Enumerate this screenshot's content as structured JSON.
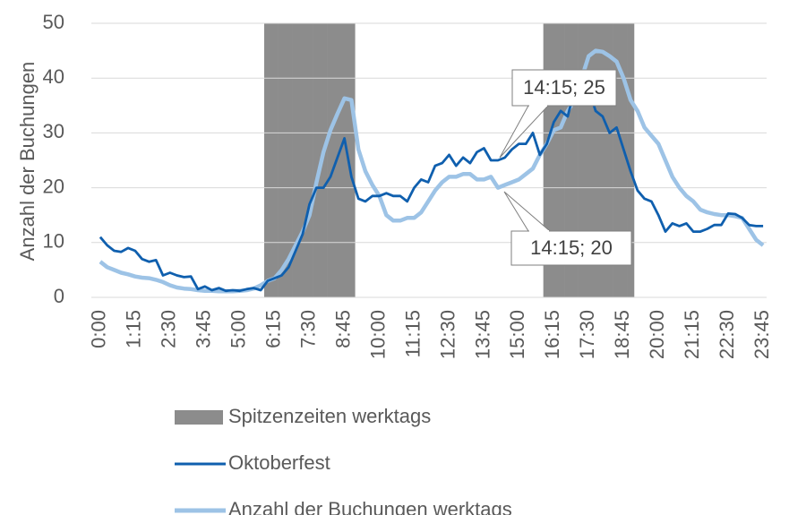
{
  "chart_data": {
    "type": "line",
    "y_label": "Anzahl der Buchungen",
    "ylim": [
      0,
      50
    ],
    "yticks": [
      0,
      10,
      20,
      30,
      40,
      50
    ],
    "grid": true,
    "legend": "bottom",
    "categories": [
      "0:00",
      null,
      null,
      null,
      null,
      "1:15",
      null,
      null,
      null,
      null,
      "2:30",
      null,
      null,
      null,
      null,
      "3:45",
      null,
      null,
      null,
      null,
      "5:00",
      null,
      null,
      null,
      null,
      "6:15",
      null,
      null,
      null,
      null,
      "7:30",
      null,
      null,
      null,
      null,
      "8:45",
      null,
      null,
      null,
      null,
      "10:00",
      null,
      null,
      null,
      null,
      "11:15",
      null,
      null,
      null,
      null,
      "12:30",
      null,
      null,
      null,
      null,
      "13:45",
      null,
      null,
      null,
      null,
      "15:00",
      null,
      null,
      null,
      null,
      "16:15",
      null,
      null,
      null,
      null,
      "17:30",
      null,
      null,
      null,
      null,
      "18:45",
      null,
      null,
      null,
      null,
      "20:00",
      null,
      null,
      null,
      null,
      "21:15",
      null,
      null,
      null,
      null,
      "22:30",
      null,
      null,
      null,
      null,
      "23:45"
    ],
    "series": [
      {
        "name": "Spitzenzeiten werktags",
        "type": "bar",
        "color": "#8c8c8c",
        "values": [
          null,
          null,
          null,
          null,
          null,
          null,
          null,
          null,
          null,
          null,
          null,
          null,
          null,
          null,
          null,
          null,
          null,
          null,
          null,
          null,
          null,
          null,
          null,
          null,
          50,
          50,
          50,
          50,
          50,
          50,
          50,
          50,
          50,
          50,
          50,
          50,
          50,
          null,
          null,
          null,
          null,
          null,
          null,
          null,
          null,
          null,
          null,
          null,
          null,
          null,
          null,
          null,
          null,
          null,
          null,
          null,
          null,
          null,
          null,
          null,
          null,
          null,
          null,
          null,
          50,
          50,
          50,
          50,
          50,
          50,
          50,
          50,
          50,
          50,
          50,
          50,
          50,
          null,
          null,
          null,
          null,
          null,
          null,
          null,
          null,
          null,
          null,
          null,
          null,
          null,
          null,
          null,
          null,
          null,
          null,
          null
        ]
      },
      {
        "name": "Oktoberfest",
        "type": "line",
        "color": "#0f5fae",
        "values": [
          11,
          9.5,
          8.5,
          8.3,
          9,
          8.5,
          7,
          6.5,
          6.8,
          4,
          4.5,
          4,
          3.7,
          3.8,
          1.5,
          2,
          1.3,
          1.7,
          1.2,
          1.3,
          1.2,
          1.5,
          1.7,
          1.3,
          3,
          3.5,
          4,
          5.5,
          8.5,
          11.5,
          17,
          20,
          20,
          22,
          25.5,
          29,
          22,
          18,
          17.5,
          18.5,
          18.5,
          19,
          18.5,
          18.5,
          17.5,
          20,
          21.5,
          21,
          24,
          24.5,
          26,
          24,
          25.5,
          24.5,
          26.5,
          27.2,
          25,
          25,
          25.5,
          27,
          28,
          28,
          30,
          26,
          28,
          32,
          34,
          33,
          38,
          40,
          38,
          34,
          33,
          30,
          31,
          27,
          23,
          19.5,
          18,
          17.5,
          15,
          12,
          13.5,
          13,
          13.5,
          12,
          12,
          12.5,
          13.2,
          13.2,
          15.3,
          15.2,
          14.5,
          13.2,
          13,
          13
        ]
      },
      {
        "name": "Anzahl der Buchungen werktags",
        "type": "line",
        "color": "#9dc3e6",
        "values": [
          6.5,
          5.5,
          5,
          4.5,
          4.2,
          3.8,
          3.6,
          3.5,
          3.2,
          2.8,
          2.2,
          1.8,
          1.6,
          1.5,
          1.3,
          1.2,
          1.2,
          1.1,
          1.1,
          1.1,
          1.2,
          1.3,
          1.6,
          2.2,
          3,
          3.5,
          5,
          7,
          9.5,
          12,
          15,
          21,
          26.5,
          30.5,
          33.5,
          36.3,
          36,
          27,
          23,
          20.5,
          18.5,
          15,
          14,
          14,
          14.5,
          14.5,
          15.5,
          17.5,
          19.5,
          21,
          22,
          22,
          22.5,
          22.5,
          21.5,
          21.5,
          22,
          20,
          20.5,
          21,
          21.5,
          22.5,
          23.5,
          26,
          28,
          30.5,
          31,
          34,
          36,
          40,
          44,
          45,
          44.8,
          44,
          43,
          40,
          36,
          34,
          31,
          29.5,
          28,
          25,
          22,
          20,
          18.5,
          17.5,
          16,
          15.5,
          15.2,
          15,
          15,
          14.8,
          14.5,
          12.5,
          10.5,
          9.5
        ]
      }
    ],
    "annotations": [
      "14:15; 25",
      "14:15; 20"
    ]
  }
}
